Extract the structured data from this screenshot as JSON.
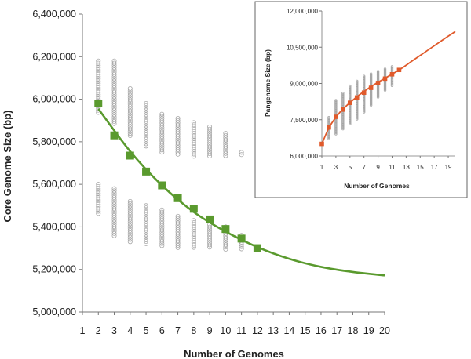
{
  "chart_data": [
    {
      "type": "scatter",
      "title": "",
      "xlabel": "Number of Genomes",
      "ylabel": "Core Genome Size (bp)",
      "xlim": [
        1,
        20
      ],
      "ylim": [
        5000000,
        6400000
      ],
      "x_ticks": [
        1,
        2,
        3,
        4,
        5,
        6,
        7,
        8,
        9,
        10,
        11,
        12,
        13,
        14,
        15,
        16,
        17,
        18,
        19,
        20
      ],
      "y_ticks": [
        5000000,
        5200000,
        5400000,
        5600000,
        5800000,
        6000000,
        6200000,
        6400000
      ],
      "y_tick_labels": [
        "5,000,000",
        "5,200,000",
        "5,400,000",
        "5,600,000",
        "5,800,000",
        "6,000,000",
        "6,200,000",
        "6,400,000"
      ],
      "grid": false,
      "colors": {
        "points": "#a6a6a6",
        "mean": "#5a9a2e",
        "fit": "#5a9a2e"
      },
      "upper_ranges": [
        {
          "x": 2,
          "min": 5930000,
          "max": 6180000
        },
        {
          "x": 3,
          "min": 5880000,
          "max": 6180000
        },
        {
          "x": 4,
          "min": 5820000,
          "max": 6050000
        },
        {
          "x": 5,
          "min": 5770000,
          "max": 5980000
        },
        {
          "x": 6,
          "min": 5750000,
          "max": 5930000
        },
        {
          "x": 7,
          "min": 5740000,
          "max": 5910000
        },
        {
          "x": 8,
          "min": 5730000,
          "max": 5890000
        },
        {
          "x": 9,
          "min": 5730000,
          "max": 5870000
        },
        {
          "x": 10,
          "min": 5730000,
          "max": 5840000
        },
        {
          "x": 11,
          "min": 5730000,
          "max": 5750000
        }
      ],
      "lower_ranges": [
        {
          "x": 2,
          "min": 5460000,
          "max": 5600000
        },
        {
          "x": 3,
          "min": 5350000,
          "max": 5580000
        },
        {
          "x": 4,
          "min": 5330000,
          "max": 5520000
        },
        {
          "x": 5,
          "min": 5320000,
          "max": 5500000
        },
        {
          "x": 6,
          "min": 5310000,
          "max": 5480000
        },
        {
          "x": 7,
          "min": 5300000,
          "max": 5450000
        },
        {
          "x": 8,
          "min": 5300000,
          "max": 5430000
        },
        {
          "x": 9,
          "min": 5300000,
          "max": 5410000
        },
        {
          "x": 10,
          "min": 5290000,
          "max": 5400000
        },
        {
          "x": 11,
          "min": 5290000,
          "max": 5360000
        }
      ],
      "series": [
        {
          "x": [
            2,
            3,
            4,
            5,
            6,
            7,
            8,
            9,
            10,
            11,
            12
          ],
          "values": [
            5980000,
            5830000,
            5735000,
            5660000,
            5595000,
            5535000,
            5485000,
            5435000,
            5390000,
            5345000,
            5300000
          ]
        }
      ],
      "fit": {
        "x": [
          2,
          4,
          6,
          8,
          10,
          12,
          14,
          16,
          18,
          20
        ],
        "values": [
          5955000,
          5755000,
          5595000,
          5470000,
          5378000,
          5305000,
          5250000,
          5212000,
          5188000,
          5172000
        ]
      }
    },
    {
      "type": "scatter",
      "title": "",
      "xlabel": "Number of Genomes",
      "ylabel": "Pangenome Size (bp)",
      "xlim": [
        1,
        20
      ],
      "ylim": [
        6000000,
        12000000
      ],
      "x_ticks": [
        1,
        3,
        5,
        7,
        9,
        11,
        13,
        15,
        17,
        19
      ],
      "y_ticks": [
        6000000,
        7500000,
        9000000,
        10500000,
        12000000
      ],
      "y_tick_labels": [
        "6,000,000",
        "7,500,000",
        "9,000,000",
        "10,500,000",
        "12,000,000"
      ],
      "grid": false,
      "colors": {
        "points": "#a6a6a6",
        "mean": "#e05a2b",
        "fit": "#e05a2b"
      },
      "ranges": [
        {
          "x": 2,
          "min": 6700000,
          "max": 7600000
        },
        {
          "x": 3,
          "min": 6900000,
          "max": 8300000
        },
        {
          "x": 4,
          "min": 7100000,
          "max": 8600000
        },
        {
          "x": 5,
          "min": 7300000,
          "max": 8900000
        },
        {
          "x": 6,
          "min": 7500000,
          "max": 9100000
        },
        {
          "x": 7,
          "min": 7800000,
          "max": 9300000
        },
        {
          "x": 8,
          "min": 8100000,
          "max": 9400000
        },
        {
          "x": 9,
          "min": 8400000,
          "max": 9500000
        },
        {
          "x": 10,
          "min": 8700000,
          "max": 9600000
        },
        {
          "x": 11,
          "min": 8900000,
          "max": 9700000
        }
      ],
      "series": [
        {
          "x": [
            1,
            2,
            3,
            4,
            5,
            6,
            7,
            8,
            9,
            10,
            11,
            12
          ],
          "values": [
            6500000,
            7180000,
            7620000,
            7920000,
            8200000,
            8420000,
            8620000,
            8820000,
            9020000,
            9200000,
            9380000,
            9560000
          ]
        }
      ],
      "fit": {
        "x": [
          1,
          2,
          3,
          4,
          6,
          8,
          10,
          12,
          14,
          16,
          18,
          20
        ],
        "values": [
          6500000,
          7160000,
          7600000,
          7940000,
          8450000,
          8870000,
          9220000,
          9560000,
          9960000,
          10360000,
          10760000,
          11150000
        ]
      }
    }
  ]
}
